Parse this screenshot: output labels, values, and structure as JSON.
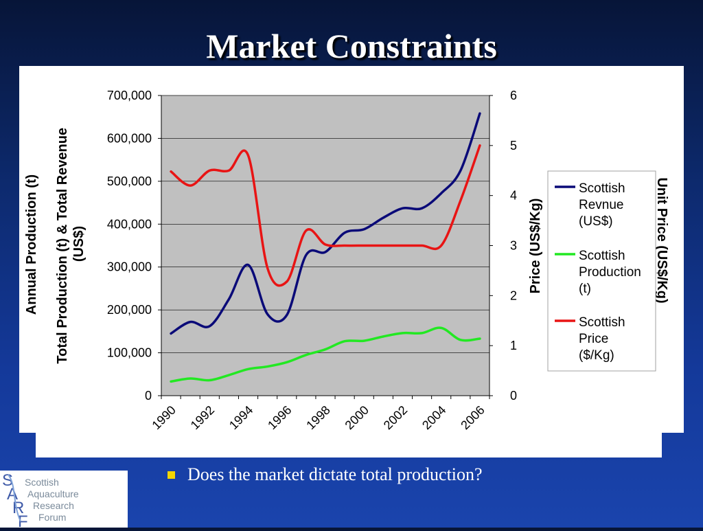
{
  "slide": {
    "title": "Market Constraints",
    "bullet": "Does the market dictate total production?"
  },
  "logo": {
    "letters": [
      "S",
      "A",
      "R",
      "F"
    ],
    "lines": [
      "Scottish",
      "Aquaculture",
      "Research",
      "Forum"
    ]
  },
  "chart_data": {
    "type": "line",
    "x": [
      1990.5,
      1991.5,
      1992.5,
      1993.5,
      1994.5,
      1995.5,
      1996.5,
      1997.5,
      1998.5,
      1999.5,
      2000.5,
      2001.5,
      2002.5,
      2003.5,
      2004.5,
      2005.5,
      2006.5
    ],
    "x_ticks": [
      "1990",
      "1992",
      "1994",
      "1996",
      "1998",
      "2000",
      "2002",
      "2004",
      "2006"
    ],
    "xlim": [
      1990,
      2007
    ],
    "y_left": {
      "label": "Total Production (t) & Total Revenue (US$)",
      "label_clipped": "Annual Production (t)",
      "ylim": [
        0,
        700000
      ],
      "ticks": [
        "0",
        "100,000",
        "200,000",
        "300,000",
        "400,000",
        "500,000",
        "600,000",
        "700,000"
      ]
    },
    "y_right": {
      "label": "Price (US$/Kg)",
      "label_clipped": "Unit Price (US$/Kg)",
      "ylim": [
        0,
        6
      ],
      "ticks": [
        "0",
        "1",
        "2",
        "3",
        "4",
        "5",
        "6"
      ]
    },
    "series": [
      {
        "name": "Scottish Revnue (US$)",
        "axis": "left",
        "color": "#0a0a78",
        "values": [
          145000,
          172000,
          162000,
          225000,
          305000,
          190000,
          188000,
          328000,
          335000,
          380000,
          388000,
          415000,
          437000,
          437000,
          472000,
          525000,
          658000
        ]
      },
      {
        "name": "Scottish Production (t)",
        "axis": "left",
        "color": "#22e822",
        "values": [
          33000,
          40000,
          36000,
          48000,
          62000,
          68000,
          78000,
          95000,
          108000,
          127000,
          128000,
          138000,
          146000,
          146000,
          158000,
          130000,
          133000
        ]
      },
      {
        "name": "Scottish Price ($/Kg)",
        "axis": "right",
        "color": "#e81414",
        "values": [
          4.48,
          4.2,
          4.5,
          4.5,
          4.8,
          2.55,
          2.28,
          3.3,
          3.02,
          3.0,
          3.0,
          3.0,
          3.0,
          3.0,
          3.0,
          3.9,
          5.0
        ]
      }
    ],
    "legend": {
      "placement": "right",
      "entries": [
        [
          "Scottish",
          "Revnue",
          "(US$)"
        ],
        [
          "Scottish",
          "Production",
          "(t)"
        ],
        [
          "Scottish",
          "Price",
          "($/Kg)"
        ]
      ]
    },
    "plot_background": "#c0c0c0",
    "grid": true
  }
}
